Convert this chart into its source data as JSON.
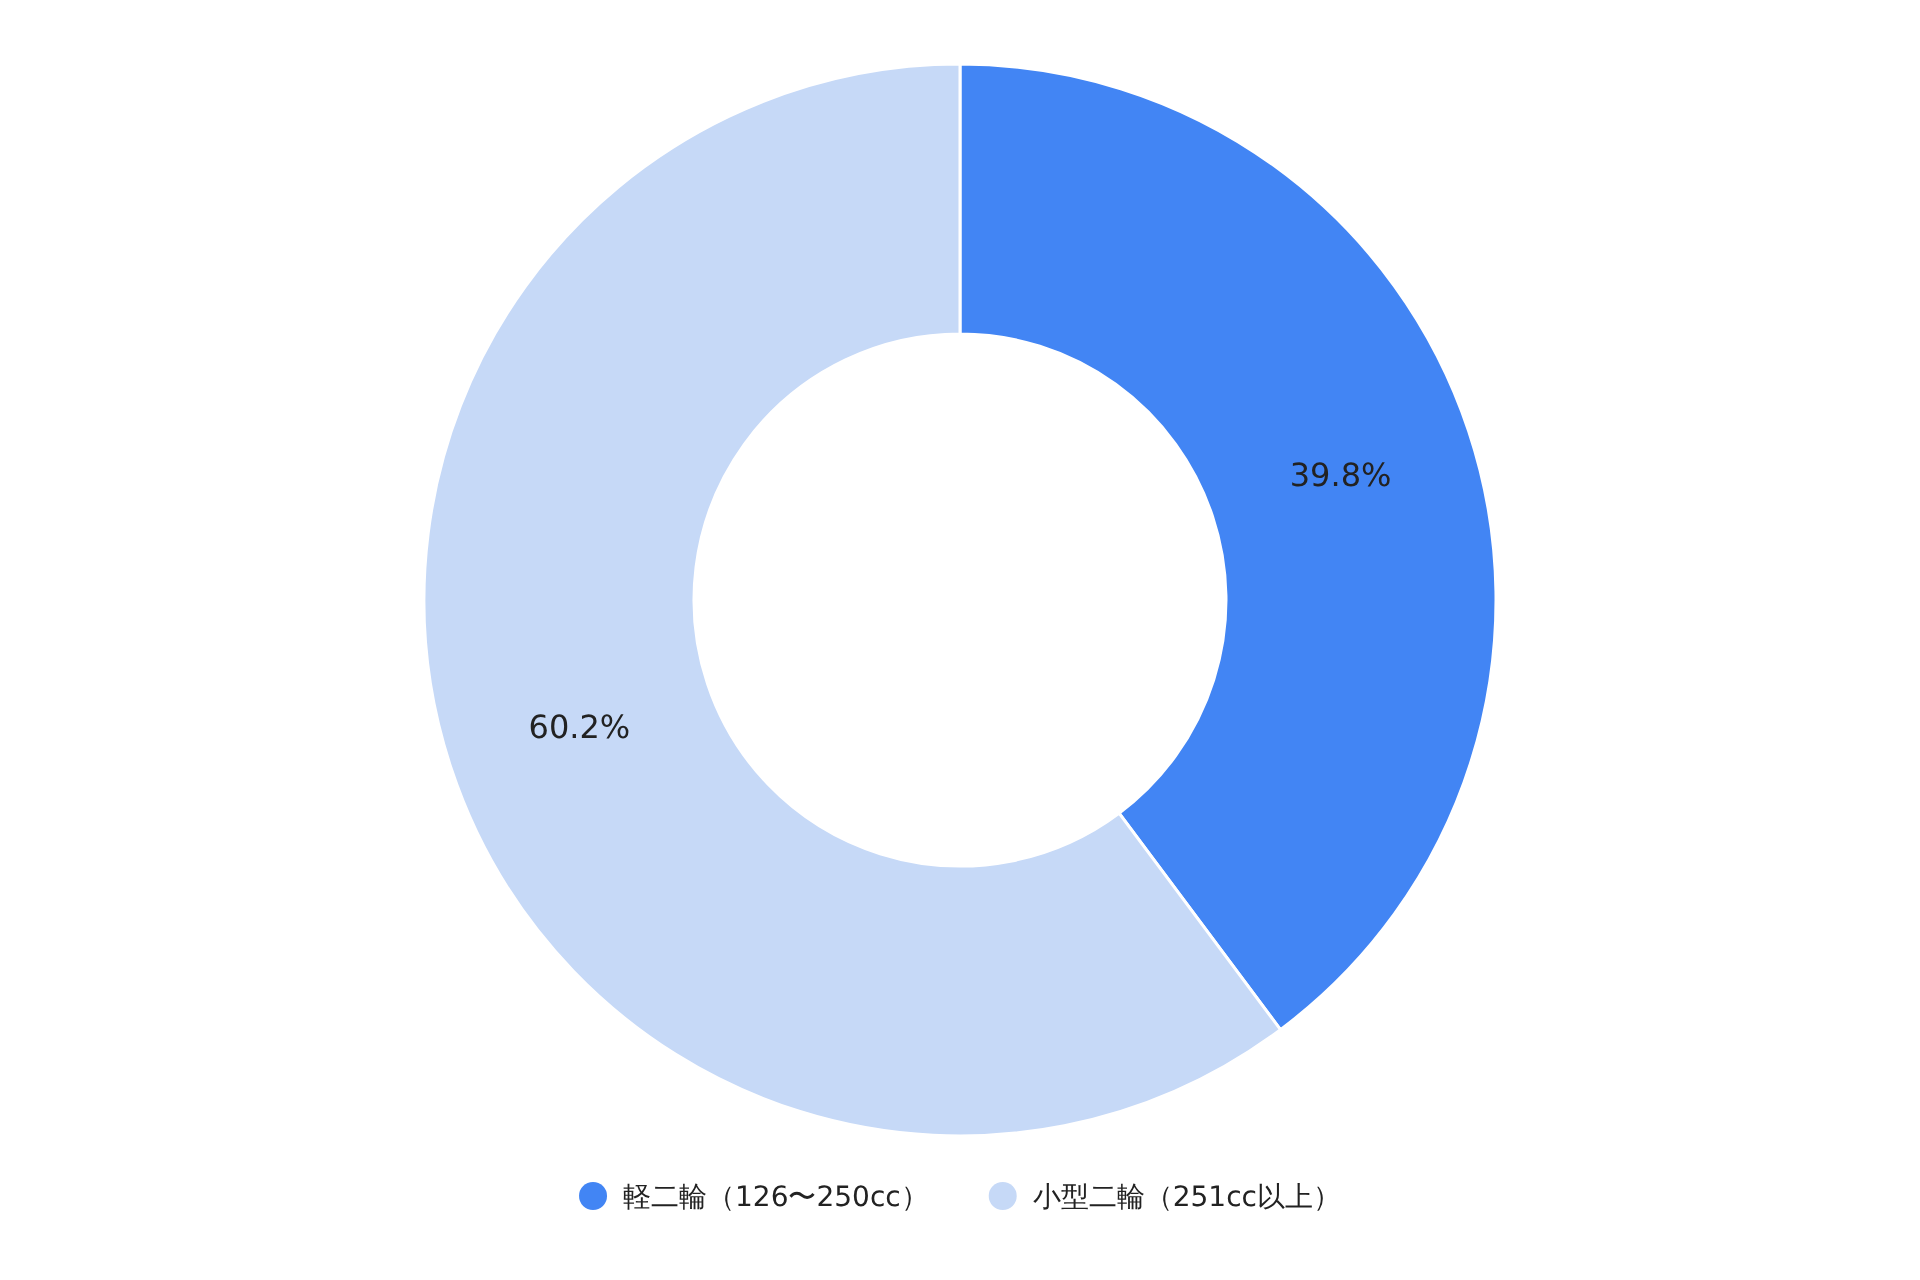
{
  "chart_data": {
    "type": "donut",
    "categories": [
      "軽二輪（126〜250cc）",
      "小型二輪（251cc以上）"
    ],
    "values": [
      39.8,
      60.2
    ],
    "colors": [
      "#4285f4",
      "#c6d9f7"
    ],
    "value_labels": [
      "39.8%",
      "60.2%"
    ],
    "legend": "bottom"
  }
}
